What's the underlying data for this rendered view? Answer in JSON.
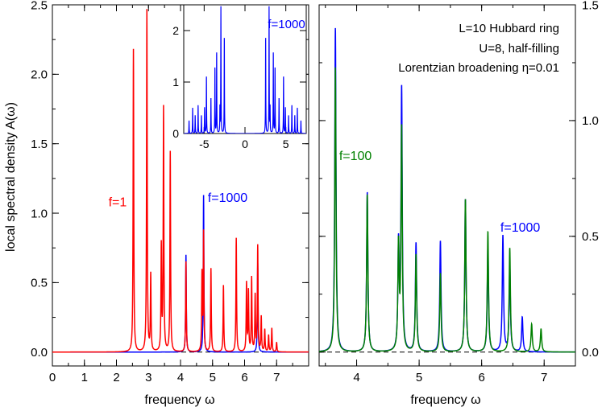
{
  "chart_data": [
    {
      "panel": "left",
      "type": "line",
      "xlabel": "frequency  ω",
      "ylabel": "local spectral density  A(ω)",
      "xlim": [
        0,
        8
      ],
      "ylim": [
        -0.1,
        2.5
      ],
      "x_ticks": [
        "0",
        "1",
        "2",
        "3",
        "4",
        "5",
        "6",
        "7"
      ],
      "y_ticks": [
        "0.0",
        "0.5",
        "1.0",
        "1.5",
        "2.0",
        "2.5"
      ],
      "reference_line": {
        "y": 0,
        "style": "dashed"
      },
      "series": [
        {
          "name": "f=1",
          "color": "#ff0000",
          "peaks": [
            {
              "x": 2.53,
              "y": 2.18
            },
            {
              "x": 2.95,
              "y": 2.46
            },
            {
              "x": 3.07,
              "y": 0.55
            },
            {
              "x": 3.4,
              "y": 0.75
            },
            {
              "x": 3.47,
              "y": 1.75
            },
            {
              "x": 3.68,
              "y": 1.44
            },
            {
              "x": 4.17,
              "y": 0.65
            },
            {
              "x": 4.67,
              "y": 0.55
            },
            {
              "x": 4.72,
              "y": 0.85
            },
            {
              "x": 4.95,
              "y": 0.6
            },
            {
              "x": 5.34,
              "y": 0.48
            },
            {
              "x": 5.74,
              "y": 0.82
            },
            {
              "x": 6.06,
              "y": 0.49
            },
            {
              "x": 6.12,
              "y": 0.43
            },
            {
              "x": 6.22,
              "y": 0.53
            },
            {
              "x": 6.33,
              "y": 0.4
            },
            {
              "x": 6.41,
              "y": 0.76
            },
            {
              "x": 6.52,
              "y": 0.25
            },
            {
              "x": 6.63,
              "y": 0.16
            },
            {
              "x": 6.75,
              "y": 0.12
            },
            {
              "x": 6.85,
              "y": 0.17
            },
            {
              "x": 7.0,
              "y": 0.07
            }
          ]
        },
        {
          "name": "f=1000",
          "color": "#0000ff",
          "peaks": [
            {
              "x": 4.17,
              "y": 0.7
            },
            {
              "x": 4.72,
              "y": 1.13
            },
            {
              "x": 6.41,
              "y": 0.64
            }
          ]
        }
      ],
      "annotations": [
        {
          "text": "f=1",
          "x": 1.75,
          "y": 1.05,
          "color": "#ff0000"
        },
        {
          "text": "f=1000",
          "x": 4.85,
          "y": 1.08,
          "color": "#0000ff"
        }
      ]
    },
    {
      "panel": "inset",
      "type": "line",
      "xlim": [
        -7.5,
        7.5
      ],
      "ylim": [
        0,
        2.5
      ],
      "x_ticks": [
        "-5",
        "0",
        "5"
      ],
      "y_ticks": [
        "0",
        "1",
        "2"
      ],
      "series": [
        {
          "name": "f=1000",
          "color": "#0000ff",
          "peaks": [
            {
              "x": 2.53,
              "y": 1.9
            },
            {
              "x": 2.95,
              "y": 2.45
            },
            {
              "x": 3.07,
              "y": 0.5
            },
            {
              "x": 3.47,
              "y": 1.6
            },
            {
              "x": 3.68,
              "y": 1.3
            },
            {
              "x": 4.17,
              "y": 0.7
            },
            {
              "x": 4.72,
              "y": 1.13
            },
            {
              "x": 4.95,
              "y": 0.5
            },
            {
              "x": 5.34,
              "y": 0.35
            },
            {
              "x": 5.74,
              "y": 0.55
            },
            {
              "x": 6.1,
              "y": 0.35
            },
            {
              "x": 6.41,
              "y": 0.5
            },
            {
              "x": 6.85,
              "y": 0.25
            },
            {
              "x": -2.53,
              "y": 1.9
            },
            {
              "x": -2.95,
              "y": 2.45
            },
            {
              "x": -3.07,
              "y": 0.5
            },
            {
              "x": -3.47,
              "y": 1.6
            },
            {
              "x": -3.68,
              "y": 1.3
            },
            {
              "x": -4.17,
              "y": 0.7
            },
            {
              "x": -4.72,
              "y": 1.13
            },
            {
              "x": -4.95,
              "y": 0.5
            },
            {
              "x": -5.34,
              "y": 0.35
            },
            {
              "x": -5.74,
              "y": 0.55
            },
            {
              "x": -6.1,
              "y": 0.35
            },
            {
              "x": -6.41,
              "y": 0.5
            },
            {
              "x": -6.85,
              "y": 0.25
            }
          ]
        }
      ],
      "annotations": [
        {
          "text": "f=1000",
          "x": 2.8,
          "y": 2.05,
          "color": "#0000ff"
        }
      ]
    },
    {
      "panel": "right",
      "type": "line",
      "xlabel": "frequency  ω",
      "xlim": [
        3.4,
        7.5
      ],
      "ylim": [
        -0.06,
        1.5
      ],
      "x_ticks": [
        "4",
        "5",
        "6",
        "7"
      ],
      "y_ticks": [
        "0.0",
        "0.5",
        "1.0",
        "1.5"
      ],
      "reference_line": {
        "y": 0,
        "style": "dashed"
      },
      "series": [
        {
          "name": "f=1000",
          "color": "#0000ff",
          "peaks": [
            {
              "x": 3.66,
              "y": 1.4
            },
            {
              "x": 4.17,
              "y": 0.69
            },
            {
              "x": 4.67,
              "y": 0.45
            },
            {
              "x": 4.72,
              "y": 1.13
            },
            {
              "x": 4.95,
              "y": 0.47
            },
            {
              "x": 5.34,
              "y": 0.48
            },
            {
              "x": 5.74,
              "y": 0.66
            },
            {
              "x": 6.1,
              "y": 0.46
            },
            {
              "x": 6.34,
              "y": 0.5
            },
            {
              "x": 6.45,
              "y": 0.37
            },
            {
              "x": 6.65,
              "y": 0.15
            }
          ]
        },
        {
          "name": "f=100",
          "color": "#008000",
          "peaks": [
            {
              "x": 3.66,
              "y": 1.23
            },
            {
              "x": 4.17,
              "y": 0.68
            },
            {
              "x": 4.67,
              "y": 0.45
            },
            {
              "x": 4.72,
              "y": 0.96
            },
            {
              "x": 4.95,
              "y": 0.42
            },
            {
              "x": 5.34,
              "y": 0.34
            },
            {
              "x": 5.74,
              "y": 0.66
            },
            {
              "x": 6.1,
              "y": 0.52
            },
            {
              "x": 6.45,
              "y": 0.45
            },
            {
              "x": 6.8,
              "y": 0.12
            },
            {
              "x": 6.95,
              "y": 0.1
            }
          ]
        }
      ],
      "annotations": [
        {
          "text": "f=100",
          "x": 3.72,
          "y": 0.83,
          "color": "#008000"
        },
        {
          "text": "f=1000",
          "x": 6.3,
          "y": 0.52,
          "color": "#0000ff"
        }
      ],
      "text_box": [
        "L=10 Hubbard ring",
        "U=8, half-filling",
        "Lorentzian broadening  η=0.01"
      ]
    }
  ]
}
